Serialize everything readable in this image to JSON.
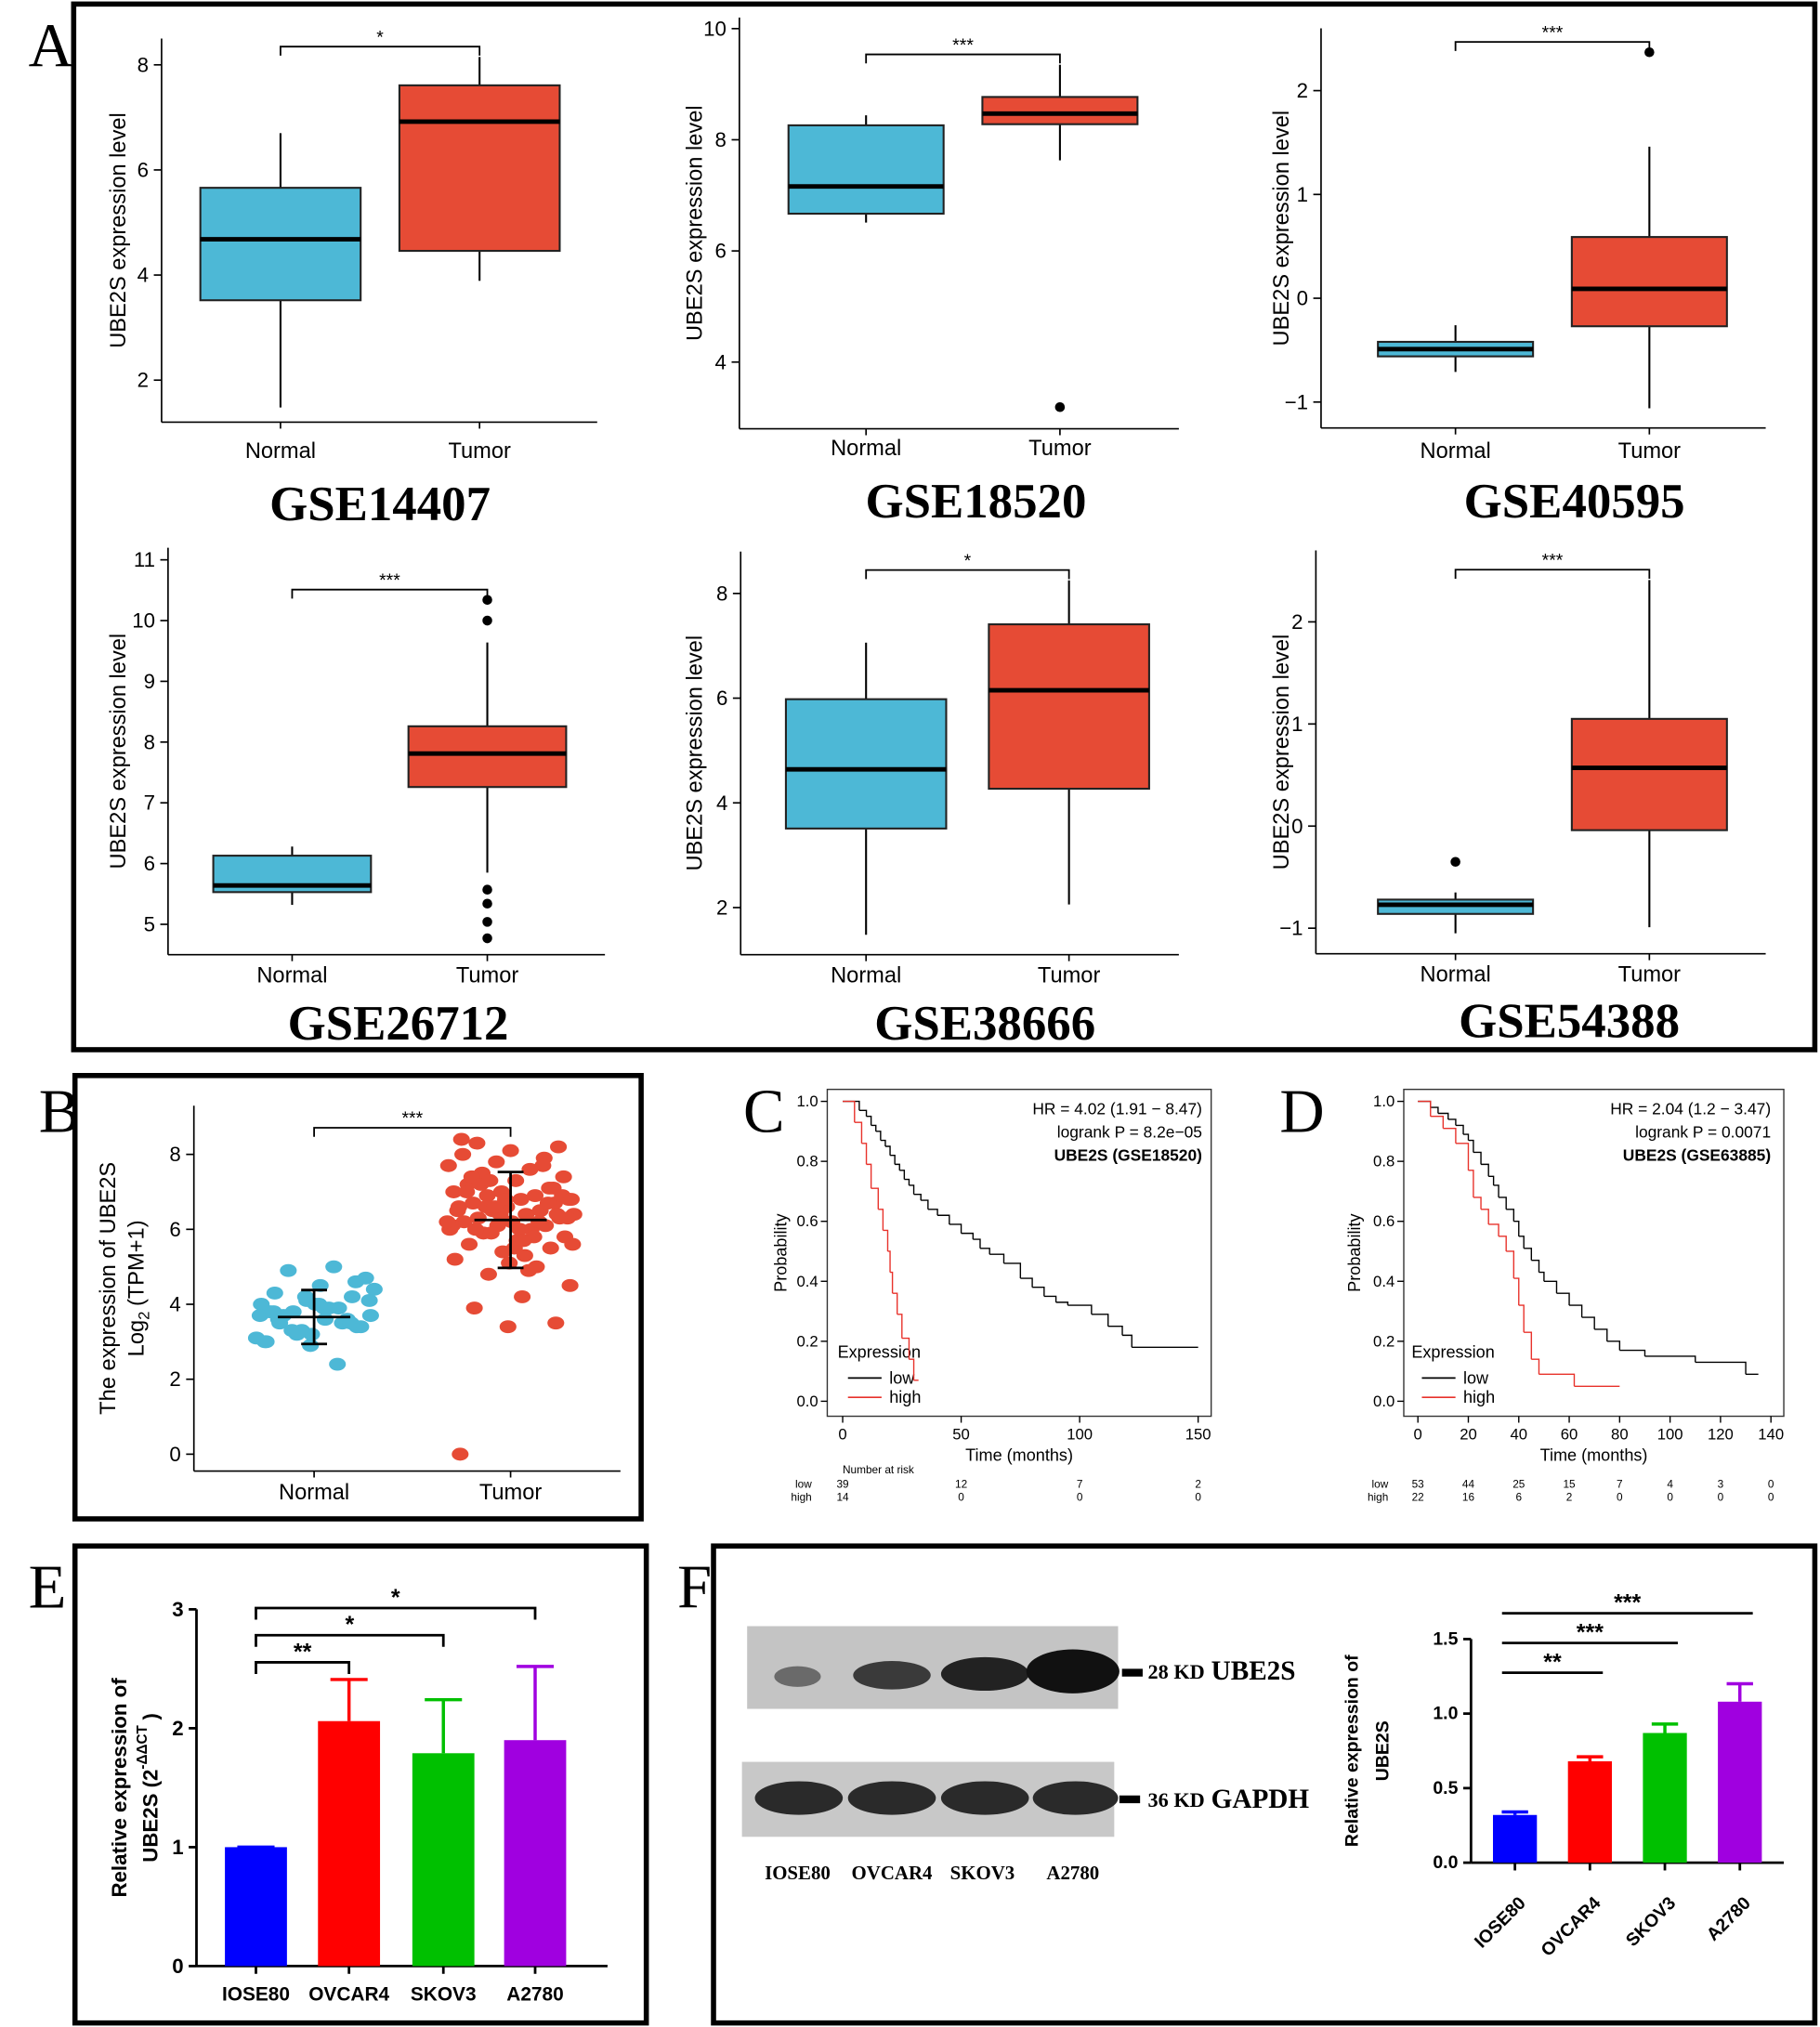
{
  "panel_labels": [
    "A",
    "B",
    "C",
    "D",
    "E",
    "F"
  ],
  "chart_data": [
    {
      "type": "box",
      "title": "GSE14407",
      "ylabel": "UBE2S expression level",
      "categories": [
        "Normal",
        "Tumor"
      ],
      "colors": [
        "#4db8d6",
        "#e64b35"
      ],
      "boxes": [
        {
          "low": 1.48,
          "q1": 3.52,
          "median": 4.68,
          "q3": 5.66,
          "high": 6.7,
          "outliers": []
        },
        {
          "low": 3.89,
          "q1": 4.46,
          "median": 6.92,
          "q3": 7.61,
          "high": 8.15,
          "outliers": []
        }
      ],
      "significance": "*",
      "ylim": [
        1.2,
        8.5
      ],
      "yticks": [
        2,
        4,
        6,
        8
      ]
    },
    {
      "type": "box",
      "title": "GSE18520",
      "ylabel": "UBE2S expression level",
      "categories": [
        "Normal",
        "Tumor"
      ],
      "colors": [
        "#4db8d6",
        "#e64b35"
      ],
      "boxes": [
        {
          "low": 6.51,
          "q1": 6.67,
          "median": 7.16,
          "q3": 8.26,
          "high": 8.44,
          "outliers": []
        },
        {
          "low": 7.63,
          "q1": 8.28,
          "median": 8.47,
          "q3": 8.77,
          "high": 9.35,
          "outliers": [
            3.19
          ]
        }
      ],
      "significance": "***",
      "ylim": [
        2.8,
        10.2
      ],
      "yticks": [
        4,
        6,
        8,
        10
      ]
    },
    {
      "type": "box",
      "title": "GSE40595",
      "ylabel": "UBE2S expression level",
      "categories": [
        "Normal",
        "Tumor"
      ],
      "colors": [
        "#4db8d6",
        "#e64b35"
      ],
      "boxes": [
        {
          "low": -0.71,
          "q1": -0.56,
          "median": -0.49,
          "q3": -0.42,
          "high": -0.26,
          "outliers": []
        },
        {
          "low": -1.06,
          "q1": -0.27,
          "median": 0.09,
          "q3": 0.59,
          "high": 1.46,
          "outliers": [
            2.37
          ]
        }
      ],
      "significance": "***",
      "ylim": [
        -1.25,
        2.6
      ],
      "yticks": [
        {
          "value": -1,
          "label": "−1"
        },
        0,
        1,
        2
      ]
    },
    {
      "type": "box",
      "title": "GSE26712",
      "ylabel": "UBE2S expression level",
      "categories": [
        "Normal",
        "Tumor"
      ],
      "colors": [
        "#4db8d6",
        "#e64b35"
      ],
      "boxes": [
        {
          "low": 5.32,
          "q1": 5.53,
          "median": 5.64,
          "q3": 6.13,
          "high": 6.28,
          "outliers": []
        },
        {
          "low": 5.85,
          "q1": 7.26,
          "median": 7.81,
          "q3": 8.26,
          "high": 9.64,
          "outliers": [
            10.0,
            10.34,
            5.57,
            5.34,
            5.04,
            4.77
          ]
        }
      ],
      "significance": "***",
      "ylim": [
        4.5,
        11.2
      ],
      "yticks": [
        5,
        6,
        7,
        8,
        9,
        10,
        11
      ]
    },
    {
      "type": "box",
      "title": "GSE38666",
      "ylabel": "UBE2S expression level",
      "categories": [
        "Normal",
        "Tumor"
      ],
      "colors": [
        "#4db8d6",
        "#e64b35"
      ],
      "boxes": [
        {
          "low": 1.48,
          "q1": 3.51,
          "median": 4.64,
          "q3": 5.98,
          "high": 7.06,
          "outliers": []
        },
        {
          "low": 2.06,
          "q1": 4.27,
          "median": 6.15,
          "q3": 7.41,
          "high": 8.25,
          "outliers": []
        }
      ],
      "significance": "*",
      "ylim": [
        1.1,
        8.8
      ],
      "yticks": [
        2,
        4,
        6,
        8
      ]
    },
    {
      "type": "box",
      "title": "GSE54388",
      "ylabel": "UBE2S expression level",
      "categories": [
        "Normal",
        "Tumor"
      ],
      "colors": [
        "#4db8d6",
        "#e64b35"
      ],
      "boxes": [
        {
          "low": -1.05,
          "q1": -0.86,
          "median": -0.77,
          "q3": -0.72,
          "high": -0.65,
          "outliers": [
            -0.35
          ]
        },
        {
          "low": -0.99,
          "q1": -0.04,
          "median": 0.57,
          "q3": 1.05,
          "high": 2.41,
          "outliers": []
        }
      ],
      "significance": "***",
      "ylim": [
        -1.25,
        2.7
      ],
      "yticks": [
        {
          "value": -1,
          "label": "−1"
        },
        0,
        1,
        2
      ]
    },
    {
      "type": "strip",
      "ylabel_lines": [
        "The expression of UBE2S",
        "Log"
      ],
      "ylabel_sub": "2",
      "ylabel_end": "(TPM+1)",
      "categories": [
        "Normal",
        "Tumor"
      ],
      "colors": [
        "#4db8d6",
        "#e64b35"
      ],
      "groups": [
        {
          "mean": 3.66,
          "sd": 0.72,
          "values": [
            3.0,
            3.2,
            3.4,
            3.5,
            3.6,
            3.7,
            3.8,
            3.9,
            4.0,
            4.1,
            4.2,
            4.3,
            4.5,
            4.7,
            4.9,
            5.0,
            3.1,
            3.3,
            3.6,
            3.8,
            4.0,
            3.4,
            3.7,
            3.9,
            4.4,
            3.2,
            3.5,
            3.0,
            2.9,
            4.6,
            3.6,
            3.9,
            4.1,
            3.3,
            2.4,
            3.7,
            4.2,
            3.5,
            3.8,
            4.0
          ]
        },
        {
          "mean": 6.25,
          "sd": 1.28,
          "values": [
            0.0,
            3.4,
            3.5,
            3.9,
            4.2,
            4.5,
            4.8,
            5.0,
            5.2,
            5.4,
            5.5,
            5.6,
            5.7,
            5.8,
            5.9,
            6.0,
            6.0,
            6.1,
            6.1,
            6.2,
            6.2,
            6.3,
            6.3,
            6.4,
            6.4,
            6.5,
            6.5,
            6.6,
            6.6,
            6.7,
            6.7,
            6.8,
            6.8,
            6.9,
            6.9,
            7.0,
            7.0,
            7.1,
            7.2,
            7.3,
            7.4,
            7.5,
            7.6,
            7.7,
            7.8,
            7.9,
            8.0,
            8.1,
            8.2,
            8.3,
            5.3,
            5.6,
            5.9,
            6.2,
            6.5,
            6.8,
            7.1,
            7.4,
            6.0,
            6.3,
            6.6,
            5.8,
            6.1,
            6.4,
            6.7,
            7.0,
            5.5,
            6.9,
            7.2,
            4.9,
            6.2,
            6.6,
            7.7,
            8.4,
            5.1,
            6.4,
            6.0,
            5.7,
            6.8,
            7.3
          ]
        }
      ],
      "significance": "***",
      "ylim": [
        -0.45,
        9.3
      ],
      "yticks": [
        0,
        2,
        4,
        6,
        8
      ]
    },
    {
      "type": "km",
      "xlabel": "Time (months)",
      "ylabel": "Probability",
      "stats": [
        "HR = 4.02 (1.91 − 8.47)",
        "logrank P = 8.2e−05",
        "UBE2S (GSE18520)"
      ],
      "legend_title": "Expression",
      "series": [
        {
          "name": "low",
          "color": "#000000",
          "x": [
            0,
            7,
            10,
            12,
            14,
            16,
            18,
            20,
            22,
            24,
            26,
            28,
            30,
            33,
            36,
            40,
            45,
            50,
            55,
            58,
            62,
            68,
            75,
            80,
            85,
            90,
            95,
            105,
            112,
            118,
            122,
            150
          ],
          "values": [
            1.0,
            0.97,
            0.95,
            0.92,
            0.9,
            0.87,
            0.85,
            0.82,
            0.79,
            0.77,
            0.74,
            0.72,
            0.69,
            0.67,
            0.64,
            0.62,
            0.59,
            0.56,
            0.54,
            0.51,
            0.49,
            0.46,
            0.41,
            0.38,
            0.35,
            0.33,
            0.32,
            0.29,
            0.25,
            0.22,
            0.18,
            0.18
          ]
        },
        {
          "name": "high",
          "color": "#e8322b",
          "x": [
            0,
            5,
            8,
            10,
            12,
            15,
            17,
            19,
            20,
            21,
            23,
            25,
            28,
            30,
            32
          ],
          "values": [
            1.0,
            0.93,
            0.86,
            0.79,
            0.71,
            0.64,
            0.57,
            0.5,
            0.43,
            0.36,
            0.29,
            0.21,
            0.14,
            0.07,
            0.07
          ]
        }
      ],
      "risk_title": "Number at risk",
      "risk": [
        [
          39,
          12,
          7,
          2
        ],
        [
          14,
          0,
          0,
          0
        ]
      ],
      "xlim": [
        -6.5,
        155.5
      ],
      "xticks": [
        0,
        50,
        100,
        150
      ],
      "ylim": [
        -0.05,
        1.04
      ],
      "yticks": [
        {
          "value": 0,
          "label": "0.0"
        },
        {
          "value": 0.2,
          "label": "0.2"
        },
        {
          "value": 0.4,
          "label": "0.4"
        },
        {
          "value": 0.6,
          "label": "0.6"
        },
        {
          "value": 0.8,
          "label": "0.8"
        },
        {
          "value": 1,
          "label": "1.0"
        }
      ]
    },
    {
      "type": "km",
      "xlabel": "Time (months)",
      "ylabel": "Probability",
      "stats": [
        "HR = 2.04 (1.2 − 3.47)",
        "logrank P = 0.0071",
        "UBE2S (GSE63885)"
      ],
      "legend_title": "Expression",
      "series": [
        {
          "name": "low",
          "color": "#000000",
          "x": [
            0,
            5,
            8,
            12,
            15,
            18,
            20,
            22,
            25,
            28,
            30,
            32,
            35,
            38,
            40,
            42,
            45,
            48,
            50,
            55,
            60,
            65,
            70,
            75,
            80,
            90,
            110,
            130,
            135
          ],
          "values": [
            1.0,
            0.98,
            0.96,
            0.94,
            0.92,
            0.89,
            0.87,
            0.83,
            0.79,
            0.75,
            0.72,
            0.68,
            0.64,
            0.6,
            0.55,
            0.51,
            0.47,
            0.43,
            0.4,
            0.36,
            0.32,
            0.28,
            0.24,
            0.2,
            0.17,
            0.15,
            0.13,
            0.09,
            0.09
          ]
        },
        {
          "name": "high",
          "color": "#e8322b",
          "x": [
            0,
            5,
            10,
            15,
            20,
            22,
            25,
            28,
            32,
            35,
            38,
            40,
            42,
            45,
            48,
            62,
            80
          ],
          "values": [
            1.0,
            0.95,
            0.91,
            0.86,
            0.77,
            0.68,
            0.64,
            0.59,
            0.55,
            0.5,
            0.41,
            0.32,
            0.23,
            0.14,
            0.09,
            0.05,
            0.05
          ]
        }
      ],
      "risk": [
        [
          53,
          44,
          25,
          15,
          7,
          4,
          3,
          0
        ],
        [
          22,
          16,
          6,
          2,
          0,
          0,
          0,
          0
        ]
      ],
      "xlim": [
        -5.6,
        145.1
      ],
      "xticks": [
        0,
        20,
        40,
        60,
        80,
        100,
        120,
        140
      ],
      "ylim": [
        -0.05,
        1.04
      ],
      "yticks": [
        {
          "value": 0,
          "label": "0.0"
        },
        {
          "value": 0.2,
          "label": "0.2"
        },
        {
          "value": 0.4,
          "label": "0.4"
        },
        {
          "value": 0.6,
          "label": "0.6"
        },
        {
          "value": 0.8,
          "label": "0.8"
        },
        {
          "value": 1,
          "label": "1.0"
        }
      ]
    },
    {
      "type": "bar",
      "ylabel_lines": [
        "Relative expression of",
        "UBE2S (2"
      ],
      "ylabel_sup": "-ΔΔCT",
      "ylabel_end": ")",
      "categories": [
        "IOSE80",
        "OVCAR4",
        "SKOV3",
        "A2780"
      ],
      "colors": [
        "#0000ff",
        "#ff0000",
        "#00c000",
        "#a000e0"
      ],
      "values": [
        1.0,
        2.06,
        1.79,
        1.9
      ],
      "errors": [
        0,
        0.35,
        0.45,
        0.62
      ],
      "significance": [
        null,
        "**",
        "*",
        "*"
      ],
      "ylim": [
        0,
        3
      ],
      "yticks": [
        0,
        1,
        2,
        3
      ]
    },
    {
      "type": "bar",
      "ylabel_lines": [
        "Relative expression of",
        "UBE2S"
      ],
      "categories": [
        "IOSE80",
        "OVCAR4",
        "SKOV3",
        "A2780"
      ],
      "colors": [
        "#0000ff",
        "#ff0000",
        "#00c000",
        "#a000e0"
      ],
      "values": [
        0.32,
        0.68,
        0.87,
        1.08
      ],
      "errors": [
        0.02,
        0.03,
        0.06,
        0.12
      ],
      "significance": [
        null,
        "**",
        "***",
        "***"
      ],
      "ylim": [
        0,
        1.5
      ],
      "yticks": [
        {
          "value": 0,
          "label": "0.0"
        },
        {
          "value": 0.5,
          "label": "0.5"
        },
        {
          "value": 1,
          "label": "1.0"
        },
        {
          "value": 1.5,
          "label": "1.5"
        }
      ],
      "blot": [
        {
          "size": "28 KD",
          "protein": "UBE2S"
        },
        {
          "size": "36 KD",
          "protein": "GAPDH"
        }
      ]
    }
  ]
}
